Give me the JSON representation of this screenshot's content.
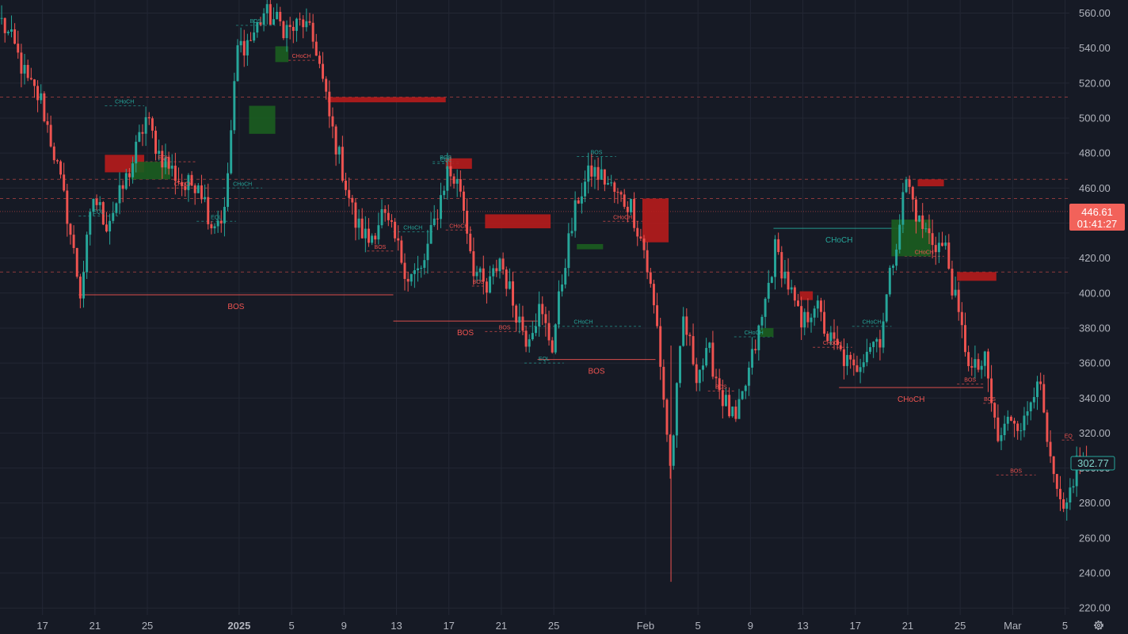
{
  "colors": {
    "background": "#161a25",
    "grid": "#232734",
    "bull": "#26a69a",
    "bear": "#ef5350",
    "bull_zone": "#1b5e20",
    "bear_zone": "#b71c1c",
    "axis_text": "#b2b5be",
    "current_label_bg": "#f2625a",
    "last_label_border": "#26a69a"
  },
  "price_axis": {
    "ticks": [
      "560.00",
      "540.00",
      "520.00",
      "500.00",
      "480.00",
      "460.00",
      "440.00",
      "420.00",
      "400.00",
      "380.00",
      "360.00",
      "340.00",
      "320.00",
      "300.00",
      "280.00",
      "260.00",
      "240.00",
      "220.00"
    ],
    "current_price_label": "446.61",
    "countdown_label": "01:41:27",
    "last_price_label": "302.77"
  },
  "time_axis": {
    "labels": [
      "17",
      "21",
      "25",
      "2025",
      "5",
      "9",
      "13",
      "17",
      "21",
      "25",
      "Feb",
      "5",
      "9",
      "13",
      "17",
      "21",
      "25",
      "Mar",
      "5"
    ]
  },
  "settings_icon": "gear-icon",
  "chart_data": {
    "type": "candlestick",
    "ylim": [
      220,
      565
    ],
    "current_price": 446.61,
    "last_price": 302.77,
    "close_series": [
      {
        "date": "Dec 14",
        "close": 555
      },
      {
        "date": "Dec 15",
        "close": 540
      },
      {
        "date": "Dec 16",
        "close": 520
      },
      {
        "date": "Dec 17",
        "close": 510
      },
      {
        "date": "Dec 18",
        "close": 480
      },
      {
        "date": "Dec 19",
        "close": 445
      },
      {
        "date": "Dec 20",
        "close": 400
      },
      {
        "date": "Dec 21",
        "close": 455
      },
      {
        "date": "Dec 22",
        "close": 440
      },
      {
        "date": "Dec 23",
        "close": 455
      },
      {
        "date": "Dec 24",
        "close": 475
      },
      {
        "date": "Dec 25",
        "close": 500
      },
      {
        "date": "Dec 26",
        "close": 480
      },
      {
        "date": "Dec 27",
        "close": 470
      },
      {
        "date": "Dec 28",
        "close": 460
      },
      {
        "date": "Dec 29",
        "close": 465
      },
      {
        "date": "Dec 30",
        "close": 440
      },
      {
        "date": "Dec 31",
        "close": 445
      },
      {
        "date": "Jan 1",
        "close": 540
      },
      {
        "date": "Jan 2",
        "close": 545
      },
      {
        "date": "Jan 3",
        "close": 560
      },
      {
        "date": "Jan 4",
        "close": 555
      },
      {
        "date": "Jan 5",
        "close": 550
      },
      {
        "date": "Jan 6",
        "close": 555
      },
      {
        "date": "Jan 7",
        "close": 540
      },
      {
        "date": "Jan 8",
        "close": 500
      },
      {
        "date": "Jan 9",
        "close": 470
      },
      {
        "date": "Jan 10",
        "close": 440
      },
      {
        "date": "Jan 11",
        "close": 430
      },
      {
        "date": "Jan 12",
        "close": 445
      },
      {
        "date": "Jan 13",
        "close": 430
      },
      {
        "date": "Jan 14",
        "close": 410
      },
      {
        "date": "Jan 15",
        "close": 412
      },
      {
        "date": "Jan 16",
        "close": 440
      },
      {
        "date": "Jan 17",
        "close": 470
      },
      {
        "date": "Jan 18",
        "close": 460
      },
      {
        "date": "Jan 19",
        "close": 415
      },
      {
        "date": "Jan 20",
        "close": 400
      },
      {
        "date": "Jan 21",
        "close": 420
      },
      {
        "date": "Jan 22",
        "close": 395
      },
      {
        "date": "Jan 23",
        "close": 375
      },
      {
        "date": "Jan 24",
        "close": 390
      },
      {
        "date": "Jan 25",
        "close": 370
      },
      {
        "date": "Jan 26",
        "close": 420
      },
      {
        "date": "Jan 27",
        "close": 455
      },
      {
        "date": "Jan 28",
        "close": 470
      },
      {
        "date": "Jan 29",
        "close": 465
      },
      {
        "date": "Jan 30",
        "close": 455
      },
      {
        "date": "Jan 31",
        "close": 450
      },
      {
        "date": "Feb 1",
        "close": 425
      },
      {
        "date": "Feb 2",
        "close": 380
      },
      {
        "date": "Feb 3",
        "close": 300
      },
      {
        "date": "Feb 4",
        "close": 385
      },
      {
        "date": "Feb 5",
        "close": 355
      },
      {
        "date": "Feb 6",
        "close": 365
      },
      {
        "date": "Feb 7",
        "close": 340
      },
      {
        "date": "Feb 8",
        "close": 325
      },
      {
        "date": "Feb 9",
        "close": 355
      },
      {
        "date": "Feb 10",
        "close": 385
      },
      {
        "date": "Feb 11",
        "close": 425
      },
      {
        "date": "Feb 12",
        "close": 405
      },
      {
        "date": "Feb 13",
        "close": 380
      },
      {
        "date": "Feb 14",
        "close": 395
      },
      {
        "date": "Feb 15",
        "close": 375
      },
      {
        "date": "Feb 16",
        "close": 365
      },
      {
        "date": "Feb 17",
        "close": 355
      },
      {
        "date": "Feb 18",
        "close": 370
      },
      {
        "date": "Feb 19",
        "close": 375
      },
      {
        "date": "Feb 20",
        "close": 420
      },
      {
        "date": "Feb 21",
        "close": 465
      },
      {
        "date": "Feb 22",
        "close": 440
      },
      {
        "date": "Feb 23",
        "close": 430
      },
      {
        "date": "Feb 24",
        "close": 425
      },
      {
        "date": "Feb 25",
        "close": 385
      },
      {
        "date": "Feb 26",
        "close": 355
      },
      {
        "date": "Feb 27",
        "close": 360
      },
      {
        "date": "Feb 28",
        "close": 315
      },
      {
        "date": "Mar 1",
        "close": 330
      },
      {
        "date": "Mar 2",
        "close": 325
      },
      {
        "date": "Mar 3",
        "close": 355
      },
      {
        "date": "Mar 4",
        "close": 300
      },
      {
        "date": "Mar 5",
        "close": 270
      },
      {
        "date": "Mar 6",
        "close": 303
      }
    ],
    "zones": [
      {
        "kind": "supply",
        "x1": "Dec 22",
        "x2": "Dec 24",
        "top": 479,
        "bottom": 469
      },
      {
        "kind": "demand",
        "x1": "Dec 24",
        "x2": "Dec 26",
        "top": 475,
        "bottom": 465
      },
      {
        "kind": "demand",
        "x1": "Jan 2",
        "x2": "Jan 3",
        "top": 507,
        "bottom": 491
      },
      {
        "kind": "demand",
        "x1": "Jan 4",
        "x2": "Jan 4",
        "top": 541,
        "bottom": 532
      },
      {
        "kind": "supply",
        "x1": "Jan 8",
        "x2": "Jan 16",
        "top": 512,
        "bottom": 509
      },
      {
        "kind": "supply",
        "x1": "Jan 17",
        "x2": "Jan 18",
        "top": 477,
        "bottom": 471
      },
      {
        "kind": "supply",
        "x1": "Jan 20",
        "x2": "Jan 24",
        "top": 445,
        "bottom": 437
      },
      {
        "kind": "demand",
        "x1": "Jan 27",
        "x2": "Jan 28",
        "top": 428,
        "bottom": 425
      },
      {
        "kind": "supply",
        "x1": "Feb 1",
        "x2": "Feb 2",
        "top": 454,
        "bottom": 429
      },
      {
        "kind": "demand",
        "x1": "Feb 10",
        "x2": "Feb 10",
        "top": 380,
        "bottom": 375
      },
      {
        "kind": "supply",
        "x1": "Feb 13",
        "x2": "Feb 13",
        "top": 401,
        "bottom": 396
      },
      {
        "kind": "demand",
        "x1": "Feb 20",
        "x2": "Feb 22",
        "top": 442,
        "bottom": 421
      },
      {
        "kind": "supply",
        "x1": "Feb 22",
        "x2": "Feb 23",
        "top": 465,
        "bottom": 461
      },
      {
        "kind": "supply",
        "x1": "Feb 25",
        "x2": "Feb 27",
        "top": 412,
        "bottom": 407
      }
    ],
    "structure_lines": [
      {
        "label": "BOS",
        "color": "bear",
        "style": "solid",
        "from": "Dec 20",
        "to": "Jan 13",
        "price": 399
      },
      {
        "label": "BOS",
        "color": "bear",
        "style": "solid",
        "from": "Jan 13",
        "to": "Jan 24",
        "price": 384
      },
      {
        "label": "BOS",
        "color": "bear",
        "style": "solid",
        "from": "Jan 24",
        "to": "Feb 2",
        "price": 362
      },
      {
        "label": "CHoCH",
        "color": "bull",
        "style": "solid",
        "from": "Feb 11",
        "to": "Feb 21",
        "price": 437
      },
      {
        "label": "CHoCH",
        "color": "bear",
        "style": "solid",
        "from": "Feb 16",
        "to": "Feb 27",
        "price": 346
      },
      {
        "label": "CHoCH",
        "color": "bull",
        "style": "dashed",
        "from": "Dec 22",
        "to": "Dec 25",
        "price": 507
      },
      {
        "label": "EQH",
        "color": "bear",
        "style": "dashed",
        "from": "Dec 24",
        "to": "Dec 29",
        "price": 475
      },
      {
        "label": "CHoCH",
        "color": "bear",
        "style": "dashed",
        "from": "Dec 26",
        "to": "Dec 30",
        "price": 460
      },
      {
        "label": "EQL",
        "color": "bull",
        "style": "dashed",
        "from": "Dec 20",
        "to": "Dec 23",
        "price": 444
      },
      {
        "label": "EQL",
        "color": "bull",
        "style": "dashed",
        "from": "Dec 29",
        "to": "Jan 1",
        "price": 441
      },
      {
        "label": "CHoCH",
        "color": "bull",
        "style": "dashed",
        "from": "Dec 31",
        "to": "Jan 3",
        "price": 460
      },
      {
        "label": "BOS",
        "color": "bull",
        "style": "dashed",
        "from": "Jan 1",
        "to": "Jan 4",
        "price": 553
      },
      {
        "label": "CHoCH",
        "color": "bear",
        "style": "dashed",
        "from": "Jan 5",
        "to": "Jan 7",
        "price": 533
      },
      {
        "label": "BOS",
        "color": "bear",
        "style": "dashed",
        "from": "Jan 11",
        "to": "Jan 13",
        "price": 424
      },
      {
        "label": "CHoCH",
        "color": "bull",
        "style": "dashed",
        "from": "Jan 13",
        "to": "Jan 16",
        "price": 435
      },
      {
        "label": "BOS",
        "color": "bull",
        "style": "dashed",
        "from": "Jan 16",
        "to": "Jan 18",
        "price": 475
      },
      {
        "label": "EQL",
        "color": "bull",
        "style": "dashed",
        "from": "Jan 16",
        "to": "Jan 18",
        "price": 474
      },
      {
        "label": "CHoCH",
        "color": "bear",
        "style": "dashed",
        "from": "Jan 17",
        "to": "Jan 19",
        "price": 436
      },
      {
        "label": "BOS",
        "color": "bear",
        "style": "dashed",
        "from": "Jan 19",
        "to": "Jan 20",
        "price": 404
      },
      {
        "label": "BOS",
        "color": "bear",
        "style": "dashed",
        "from": "Jan 20",
        "to": "Jan 23",
        "price": 378
      },
      {
        "label": "CHoCH",
        "color": "bull",
        "style": "dashed",
        "from": "Jan 23",
        "to": "Feb 1",
        "price": 381
      },
      {
        "label": "EQL",
        "color": "bull",
        "style": "dashed",
        "from": "Jan 23",
        "to": "Jan 26",
        "price": 360
      },
      {
        "label": "BOS",
        "color": "bull",
        "style": "dashed",
        "from": "Jan 27",
        "to": "Jan 30",
        "price": 478
      },
      {
        "label": "CHoCH",
        "color": "bear",
        "style": "dashed",
        "from": "Jan 29",
        "to": "Feb 1",
        "price": 441
      },
      {
        "label": "BOS",
        "color": "bear",
        "style": "dashed",
        "from": "Feb 6",
        "to": "Feb 8",
        "price": 344
      },
      {
        "label": "CHoCH",
        "color": "bull",
        "style": "dashed",
        "from": "Feb 8",
        "to": "Feb 11",
        "price": 375
      },
      {
        "label": "CHoCH",
        "color": "bear",
        "style": "dashed",
        "from": "Feb 14",
        "to": "Feb 17",
        "price": 369
      },
      {
        "label": "CHoCH",
        "color": "bull",
        "style": "dashed",
        "from": "Feb 17",
        "to": "Feb 20",
        "price": 381
      },
      {
        "label": "CHoCH",
        "color": "bear",
        "style": "dashed",
        "from": "Feb 21",
        "to": "Feb 24",
        "price": 421
      },
      {
        "label": "BOS",
        "color": "bear",
        "style": "dashed",
        "from": "Feb 25",
        "to": "Feb 27",
        "price": 348
      },
      {
        "label": "BOS",
        "color": "bear",
        "style": "dashed",
        "from": "Feb 27",
        "to": "Feb 28",
        "price": 337
      },
      {
        "label": "BOS",
        "color": "bear",
        "style": "dashed",
        "from": "Feb 28",
        "to": "Mar 3",
        "price": 296
      },
      {
        "label": "EQ",
        "color": "bear",
        "style": "dashed",
        "from": "Mar 5",
        "to": "Mar 6",
        "price": 316
      }
    ]
  }
}
